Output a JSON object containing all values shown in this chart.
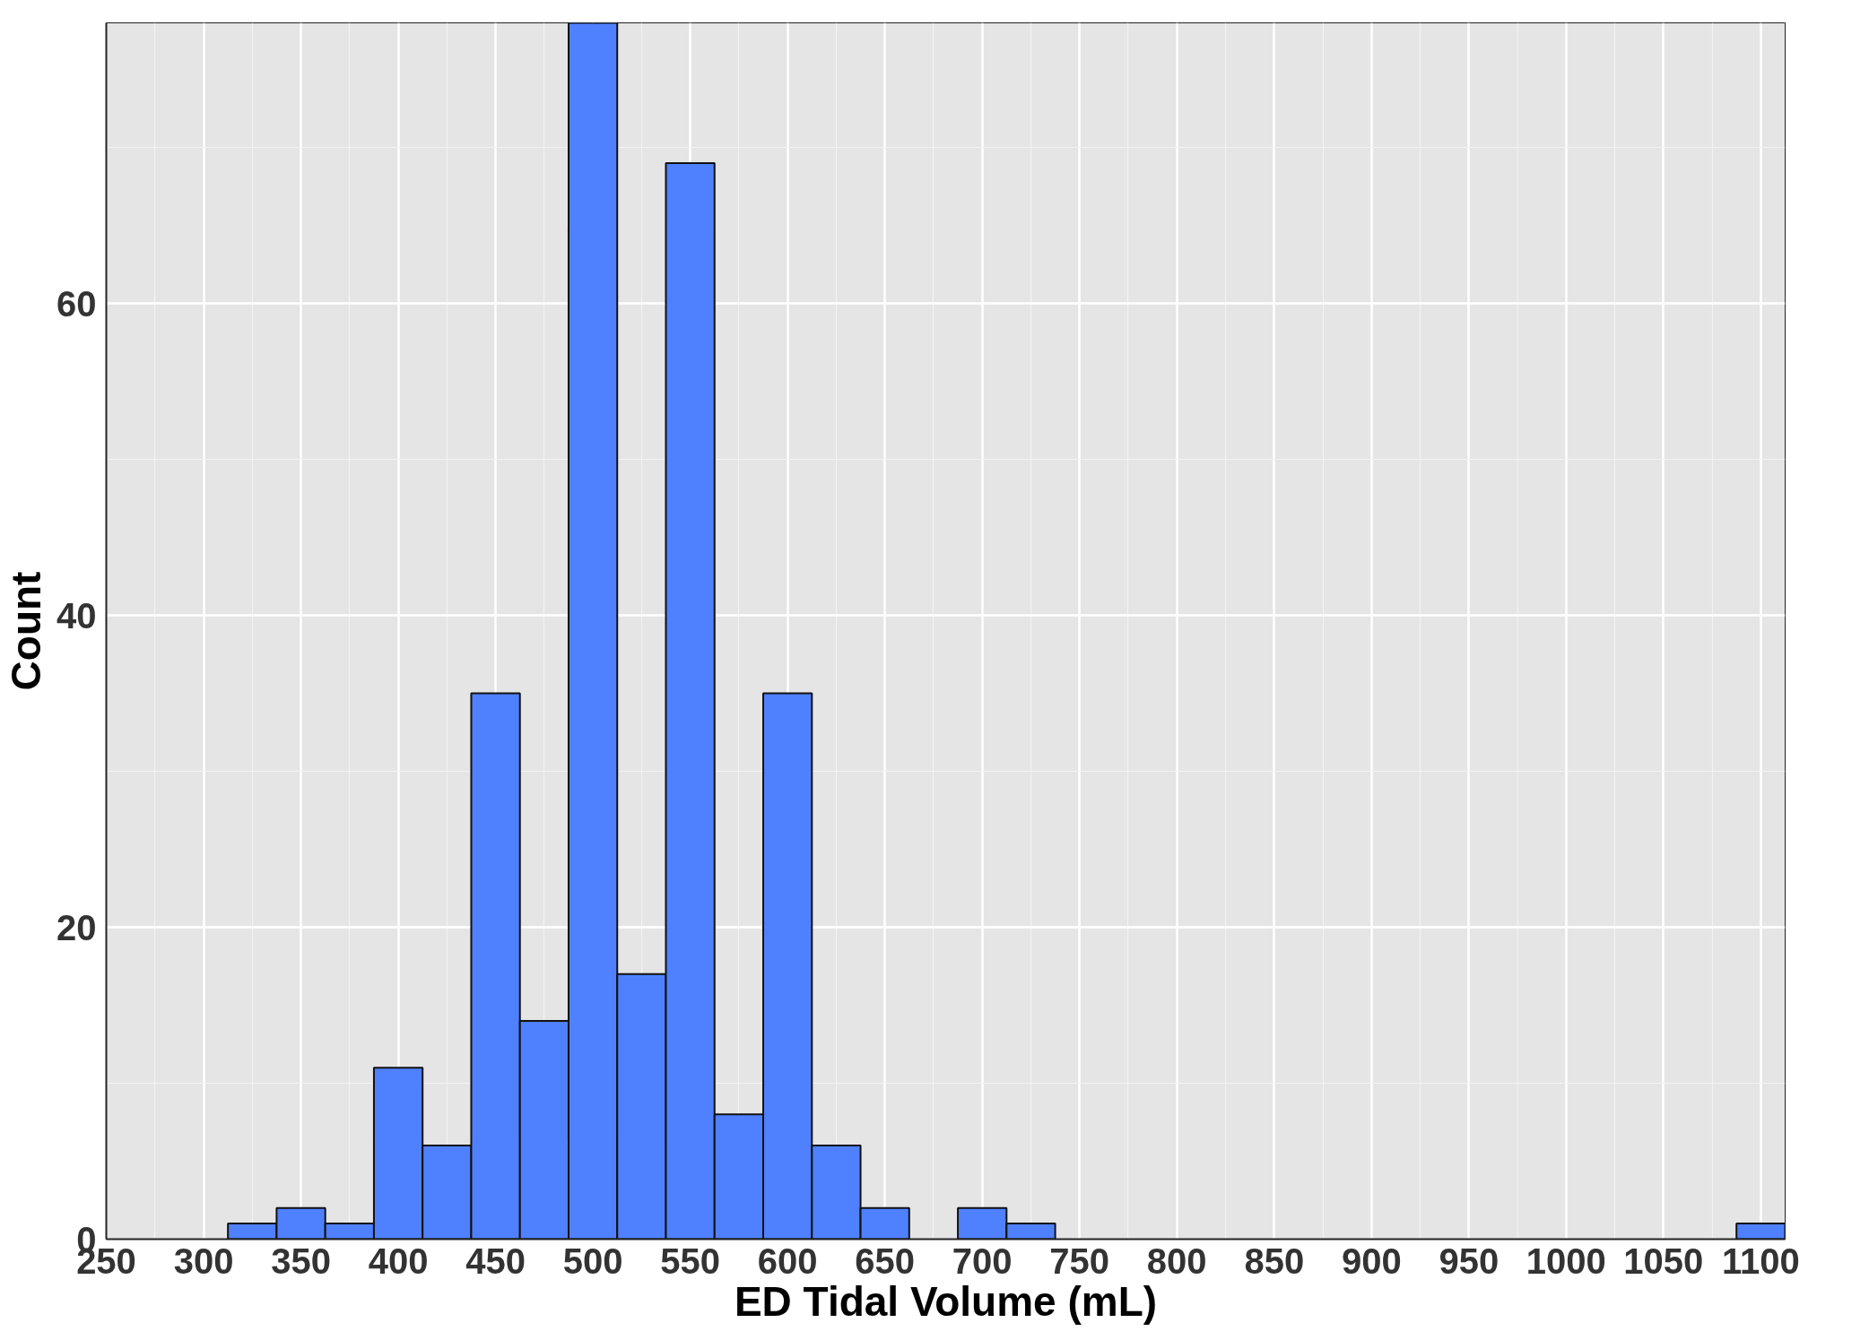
{
  "chart_data": {
    "type": "histogram",
    "xlabel": "ED Tidal Volume (mL)",
    "ylabel": "Count",
    "bins": [
      312.5,
      337.5,
      362.5,
      387.5,
      412.5,
      437.5,
      462.5,
      487.5,
      512.5,
      537.5,
      562.5,
      587.5,
      612.5,
      637.5,
      662.5,
      687.5,
      712.5,
      737.5,
      762.5,
      787.5,
      812.5,
      837.5,
      862.5,
      887.5,
      912.5,
      937.5,
      962.5,
      987.5,
      1012.5,
      1037.5,
      1062.5,
      1087.5,
      1112.5
    ],
    "values": [
      1,
      2,
      1,
      11,
      6,
      35,
      14,
      78,
      17,
      69,
      8,
      35,
      6,
      2,
      0,
      2,
      1,
      0,
      0,
      0,
      0,
      0,
      0,
      0,
      0,
      0,
      0,
      0,
      0,
      0,
      0,
      1
    ],
    "color": "#4f81ff",
    "xlim": [
      250,
      1112.5
    ],
    "ylim": [
      0,
      78
    ],
    "xticks": [
      250,
      300,
      350,
      400,
      450,
      500,
      550,
      600,
      650,
      700,
      750,
      800,
      850,
      900,
      950,
      1000,
      1050,
      1100
    ],
    "yticks": [
      0,
      20,
      40,
      60
    ],
    "grid": true
  }
}
